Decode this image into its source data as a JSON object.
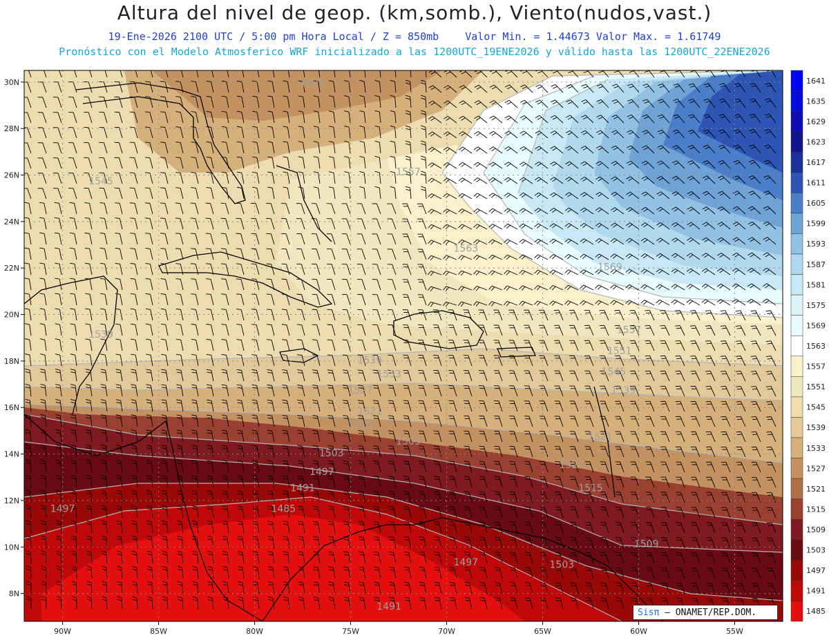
{
  "header": {
    "title": "Altura del nivel de geop. (km,somb.), Viento(nudos,vast.)",
    "subtitle_date": "19-Ene-2026  2100 UTC / 5:00 pm Hora Local / Z = 850mb",
    "subtitle_minmax": "Valor Min. = 1.44673  Valor Max. = 1.61749",
    "forecast_note": "Pronóstico con el Modelo Atmosferico WRF inicializado a las 1200UTC_19ENE2026 y válido hasta las  1200UTC_22ENE2026"
  },
  "map": {
    "lon_range": [
      -92,
      -52.5
    ],
    "lat_range": [
      6.8,
      30.5
    ],
    "lat_ticks": [
      "30N",
      "28N",
      "26N",
      "24N",
      "22N",
      "20N",
      "18N",
      "16N",
      "14N",
      "12N",
      "10N",
      "8N"
    ],
    "lat_values": [
      30,
      28,
      26,
      24,
      22,
      20,
      18,
      16,
      14,
      12,
      10,
      8
    ],
    "lon_ticks": [
      "90W",
      "85W",
      "80W",
      "75W",
      "70W",
      "65W",
      "60W",
      "55W"
    ],
    "lon_values": [
      -90,
      -85,
      -80,
      -75,
      -70,
      -65,
      -60,
      -55
    ],
    "contour_labels": [
      {
        "text": "1527",
        "lon": -77.0,
        "lat": 29.8
      },
      {
        "text": "1545",
        "lon": -88.0,
        "lat": 25.6
      },
      {
        "text": "1557",
        "lon": -72.0,
        "lat": 26.0
      },
      {
        "text": "1563",
        "lon": -69.0,
        "lat": 22.7
      },
      {
        "text": "1569",
        "lon": -61.5,
        "lat": 21.9
      },
      {
        "text": "1539",
        "lon": -88.0,
        "lat": 19.0
      },
      {
        "text": "1539",
        "lon": -74.0,
        "lat": 17.9
      },
      {
        "text": "1557",
        "lon": -60.5,
        "lat": 19.2
      },
      {
        "text": "1551",
        "lon": -61.0,
        "lat": 18.3
      },
      {
        "text": "1545",
        "lon": -61.3,
        "lat": 17.4
      },
      {
        "text": "1539",
        "lon": -60.8,
        "lat": 16.6
      },
      {
        "text": "1533",
        "lon": -73.0,
        "lat": 17.3
      },
      {
        "text": "1527",
        "lon": -74.5,
        "lat": 16.6
      },
      {
        "text": "1521",
        "lon": -74.0,
        "lat": 15.7
      },
      {
        "text": "1515",
        "lon": -74.5,
        "lat": 15.1
      },
      {
        "text": "1509",
        "lon": -72.0,
        "lat": 14.4
      },
      {
        "text": "1503",
        "lon": -76.0,
        "lat": 13.9
      },
      {
        "text": "1497",
        "lon": -76.5,
        "lat": 13.1
      },
      {
        "text": "1491",
        "lon": -77.5,
        "lat": 12.4
      },
      {
        "text": "1485",
        "lon": -78.5,
        "lat": 11.5
      },
      {
        "text": "1497",
        "lon": -90.0,
        "lat": 11.5
      },
      {
        "text": "1521",
        "lon": -62.0,
        "lat": 14.6
      },
      {
        "text": "1521",
        "lon": -63.5,
        "lat": 13.4
      },
      {
        "text": "1515",
        "lon": -62.5,
        "lat": 12.4
      },
      {
        "text": "1509",
        "lon": -59.6,
        "lat": 10.0
      },
      {
        "text": "1503",
        "lon": -64.0,
        "lat": 9.1
      },
      {
        "text": "1497",
        "lon": -69.0,
        "lat": 9.2
      },
      {
        "text": "1491",
        "lon": -73.0,
        "lat": 7.3
      }
    ]
  },
  "colorbar": {
    "levels": [
      "1641",
      "1635",
      "1629",
      "1623",
      "1617",
      "1611",
      "1605",
      "1599",
      "1593",
      "1587",
      "1581",
      "1575",
      "1569",
      "1563",
      "1557",
      "1551",
      "1545",
      "1539",
      "1533",
      "1527",
      "1521",
      "1515",
      "1509",
      "1503",
      "1497",
      "1491",
      "1485"
    ],
    "colors": [
      "#0000ff",
      "#0a0ae0",
      "#0c0cb8",
      "#13138e",
      "#1f2f9a",
      "#2f55b4",
      "#4a7ec8",
      "#6fa3d6",
      "#92c1e3",
      "#b0d9ee",
      "#c8e8f5",
      "#def4fb",
      "#e8fbff",
      "#ffffff",
      "#faf0cc",
      "#f2e6be",
      "#ecdcaf",
      "#e2c99a",
      "#d6b07a",
      "#c49260",
      "#b06f48",
      "#9a4030",
      "#7e1a20",
      "#6a0a14",
      "#9a0808",
      "#c00808",
      "#e40f0f"
    ]
  },
  "credit": {
    "brand": "Sisπ",
    "text": " – ONAMET/REP.DOM."
  }
}
